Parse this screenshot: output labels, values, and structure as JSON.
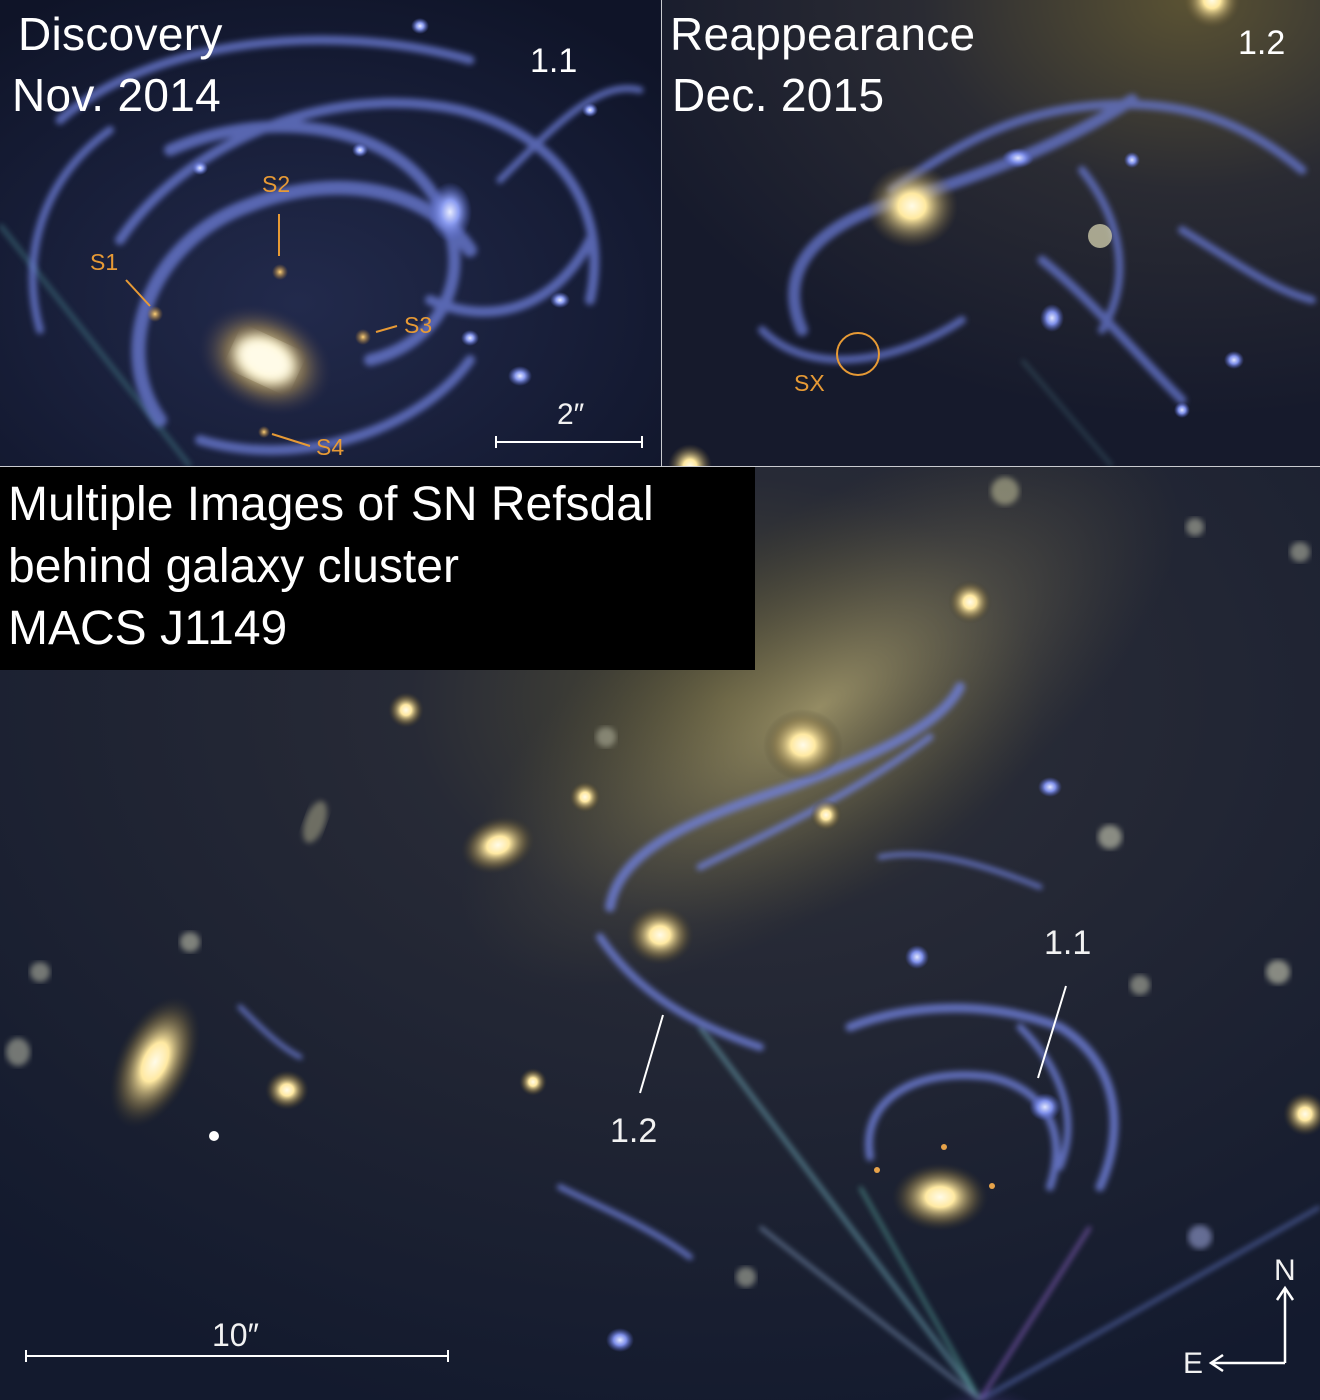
{
  "panels": {
    "discovery": {
      "label_line1": "Discovery",
      "label_line2": "Nov. 2014",
      "image_id": "1.1",
      "sn_images": [
        "S1",
        "S2",
        "S3",
        "S4"
      ],
      "scale_label": "2″"
    },
    "reappearance": {
      "label_line1": "Reappearance",
      "label_line2": "Dec. 2015",
      "image_id": "1.2",
      "marker_label": "SX"
    },
    "main": {
      "title_line1": "Multiple Images of SN Refsdal",
      "title_line2": "behind galaxy cluster",
      "title_line3": "MACS J1149",
      "label_1_1": "1.1",
      "label_1_2": "1.2",
      "scale_label": "10″",
      "compass_n": "N",
      "compass_e": "E"
    }
  },
  "colors": {
    "sky": "#0e1326",
    "galaxy_core": "#fff6c8",
    "arm_blue": "#6c7fe0",
    "annotation_orange": "#e79a35",
    "divider": "#c9cbd0"
  }
}
